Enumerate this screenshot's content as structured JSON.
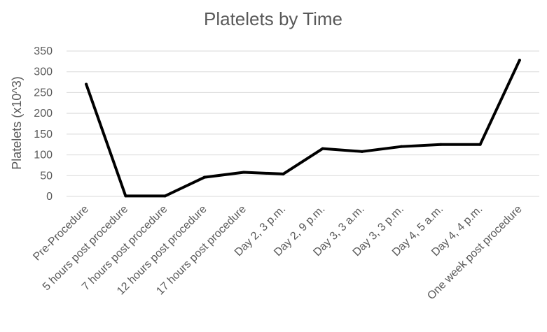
{
  "chart_data": {
    "type": "line",
    "title": "Platelets by Time",
    "xlabel": "",
    "ylabel": "Platelets (x10^3)",
    "ylim": [
      0,
      350
    ],
    "yticks": [
      0,
      50,
      100,
      150,
      200,
      250,
      300,
      350
    ],
    "grid": true,
    "legend": "none",
    "categories": [
      "Pre-Procedure",
      "5 hours post procedure",
      "7 hours post procedure",
      "12 hours post procedure",
      "17 hours post procedure",
      "Day 2, 3 p.m.",
      "Day 2, 9 p.m.",
      "Day 3, 3 a.m.",
      "Day 3, 3 p.m.",
      "Day 4, 5 a.m.",
      "Day 4, 4 p.m.",
      "One week post procedure"
    ],
    "series": [
      {
        "values": [
          270,
          1,
          1,
          46,
          58,
          54,
          115,
          108,
          120,
          125,
          125,
          328
        ],
        "color": "#000000"
      }
    ]
  }
}
